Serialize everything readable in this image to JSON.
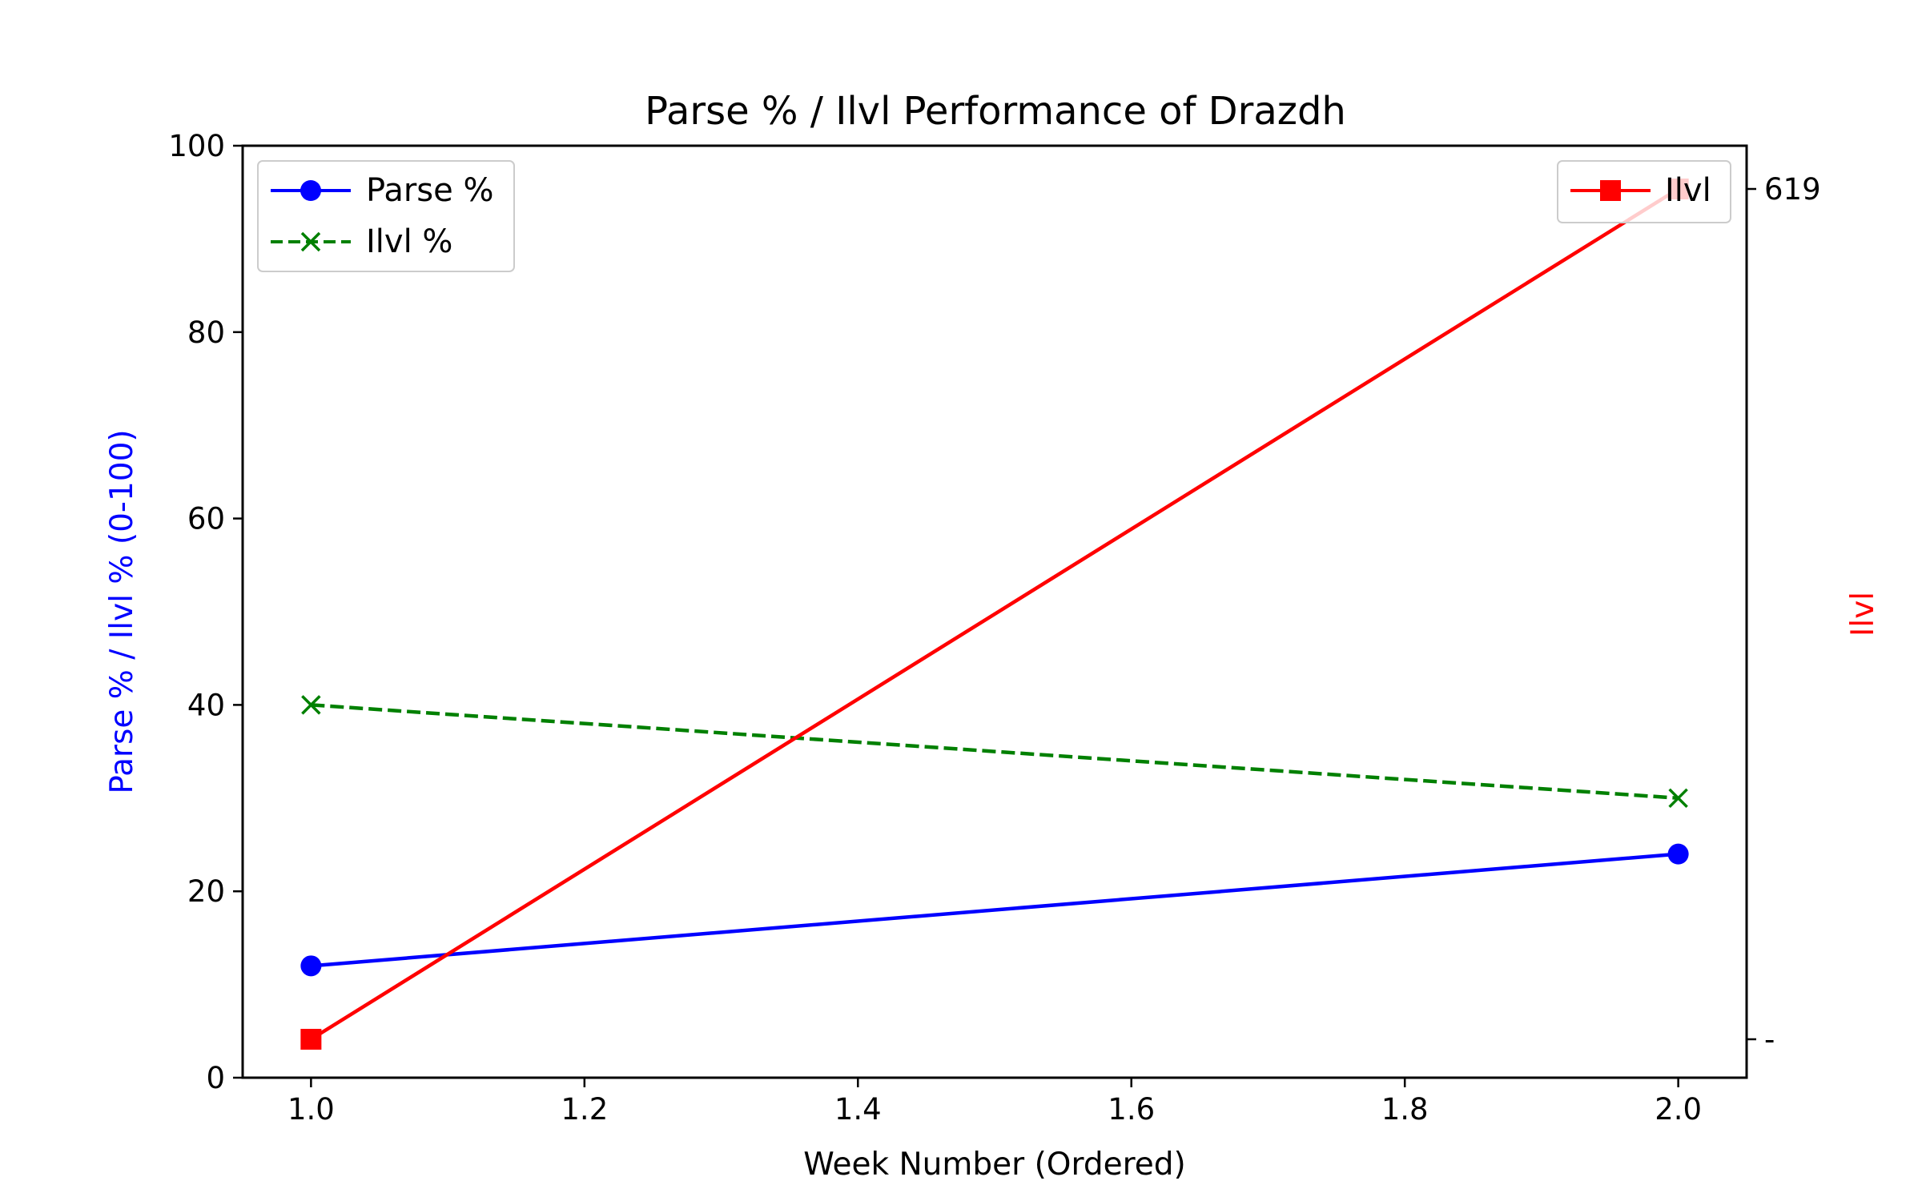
{
  "chart_data": {
    "type": "line",
    "title": "Parse % / Ilvl Performance of Drazdh",
    "xlabel": "Week Number (Ordered)",
    "ylabel_left": "Parse % / Ilvl % (0-100)",
    "ylabel_right": "Ilvl",
    "xlim": [
      0.95,
      2.05
    ],
    "ylim_left": [
      0,
      100
    ],
    "x_ticks": [
      "1.0",
      "1.2",
      "1.4",
      "1.6",
      "1.8",
      "2.0"
    ],
    "y_ticks_left": [
      "0",
      "20",
      "40",
      "60",
      "80",
      "100"
    ],
    "y_ticks_right": [
      "-",
      "619"
    ],
    "grid": false,
    "series": [
      {
        "name": "Parse %",
        "axis": "left",
        "x": [
          1.0,
          2.0
        ],
        "y": [
          12,
          24
        ],
        "color": "#0000ff",
        "marker": "circle",
        "linestyle": "solid"
      },
      {
        "name": "Ilvl %",
        "axis": "left",
        "x": [
          1.0,
          2.0
        ],
        "y": [
          40,
          30
        ],
        "color": "#008000",
        "marker": "x",
        "linestyle": "dashed"
      },
      {
        "name": "Ilvl",
        "axis": "right",
        "x": [
          1.0,
          2.0
        ],
        "y": [
          "-",
          "619"
        ],
        "color": "#ff0000",
        "marker": "square",
        "linestyle": "solid"
      }
    ],
    "legend_left": {
      "placement": "top-left",
      "entries": [
        "Parse %",
        "Ilvl %"
      ]
    },
    "legend_right": {
      "placement": "top-right",
      "entries": [
        "Ilvl"
      ]
    }
  }
}
